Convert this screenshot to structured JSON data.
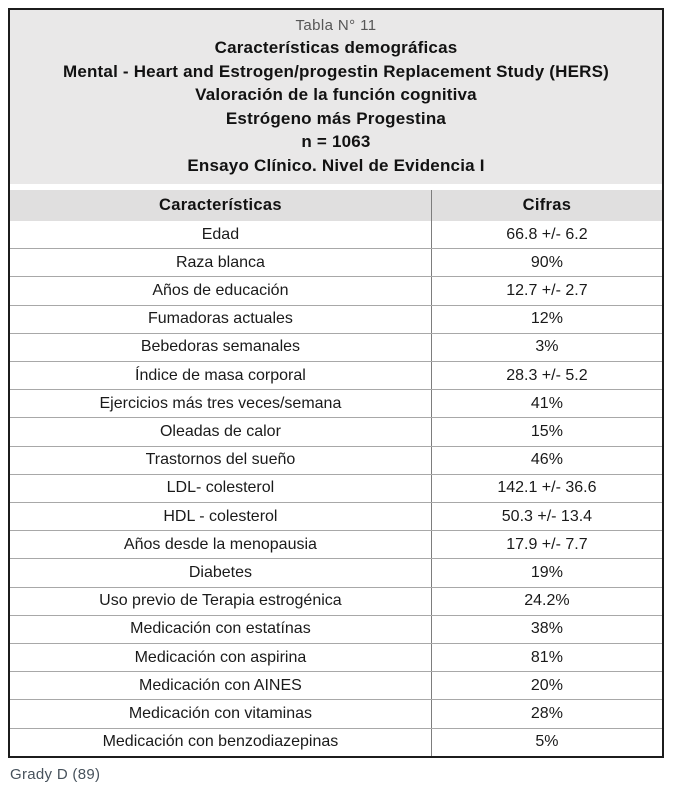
{
  "header": {
    "tabla_label": "Tabla N° 11",
    "title_lines": [
      "Características demográficas",
      "Mental - Heart and Estrogen/progestin Replacement Study (HERS)",
      "Valoración de la función cognitiva",
      "Estrógeno más Progestina",
      "n = 1063",
      "Ensayo Clínico. Nivel de Evidencia I"
    ]
  },
  "table": {
    "columns": [
      "Características",
      "Cifras"
    ],
    "rows": [
      {
        "label": "Edad",
        "value": "66.8 +/- 6.2"
      },
      {
        "label": "Raza blanca",
        "value": "90%"
      },
      {
        "label": "Años de educación",
        "value": "12.7 +/- 2.7"
      },
      {
        "label": "Fumadoras actuales",
        "value": "12%"
      },
      {
        "label": "Bebedoras semanales",
        "value": "3%"
      },
      {
        "label": "Índice de masa corporal",
        "value": "28.3 +/- 5.2"
      },
      {
        "label": "Ejercicios más tres veces/semana",
        "value": "41%"
      },
      {
        "label": "Oleadas de calor",
        "value": "15%"
      },
      {
        "label": "Trastornos del sueño",
        "value": "46%"
      },
      {
        "label": "LDL- colesterol",
        "value": "142.1 +/- 36.6"
      },
      {
        "label": "HDL - colesterol",
        "value": "50.3 +/- 13.4"
      },
      {
        "label": "Años desde la menopausia",
        "value": "17.9 +/- 7.7"
      },
      {
        "label": "Diabetes",
        "value": "19%"
      },
      {
        "label": "Uso previo de Terapia estrogénica",
        "value": "24.2%"
      },
      {
        "label": "Medicación con estatínas",
        "value": "38%"
      },
      {
        "label": "Medicación con aspirina",
        "value": "81%"
      },
      {
        "label": "Medicación con AINES",
        "value": "20%"
      },
      {
        "label": "Medicación con vitaminas",
        "value": "28%"
      },
      {
        "label": "Medicación con benzodiazepinas",
        "value": "5%"
      }
    ]
  },
  "footer": {
    "citation": "Grady D (89)"
  },
  "colors": {
    "title_block_bg": "#e9e8e8",
    "header_row_bg": "#e0dfdf",
    "outer_border": "#1c1c1c",
    "row_separator": "#a8a8a8",
    "column_divider": "#7d7d7d",
    "citation_text": "#47525c"
  }
}
